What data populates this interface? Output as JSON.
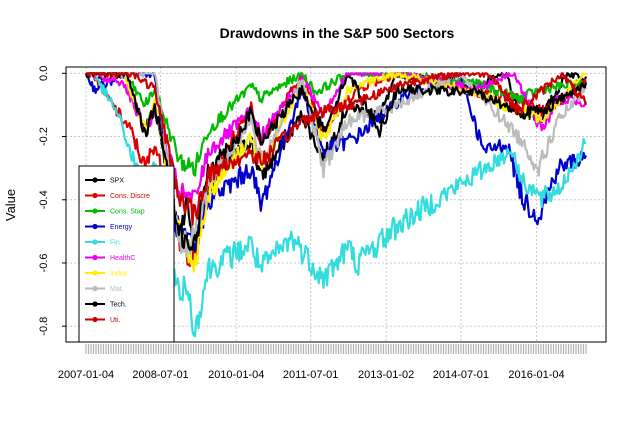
{
  "chart_data": {
    "type": "line",
    "title": "Drawdowns in the S&P 500 Sectors",
    "xlabel": "",
    "ylabel": "Value",
    "ylim": [
      -0.85,
      0.02
    ],
    "xlim": [
      "2007-01-04",
      "2016-12-30"
    ],
    "grid": true,
    "legend_placement": "bottom-left",
    "x_ticks": [
      "2007-01-04",
      "2008-07-01",
      "2010-01-04",
      "2011-07-01",
      "2013-01-02",
      "2014-07-01",
      "2016-01-04"
    ],
    "y_ticks": [
      {
        "value": 0.0,
        "label": "0.0"
      },
      {
        "value": -0.2,
        "label": "-0.2"
      },
      {
        "value": -0.4,
        "label": "-0.4"
      },
      {
        "value": -0.6,
        "label": "-0.6"
      },
      {
        "value": -0.8,
        "label": "-0.8"
      }
    ],
    "series": [
      {
        "name": "SPX",
        "color": "#000000",
        "points": [
          [
            "2007-01-04",
            0
          ],
          [
            "2007-06-01",
            -0.01
          ],
          [
            "2007-10-09",
            0
          ],
          [
            "2008-03-10",
            -0.18
          ],
          [
            "2008-05-19",
            -0.1
          ],
          [
            "2008-10-10",
            -0.42
          ],
          [
            "2008-11-20",
            -0.5
          ],
          [
            "2009-01-06",
            -0.4
          ],
          [
            "2009-03-09",
            -0.56
          ],
          [
            "2009-06-12",
            -0.35
          ],
          [
            "2010-01-19",
            -0.25
          ],
          [
            "2010-04-23",
            -0.21
          ],
          [
            "2010-07-02",
            -0.33
          ],
          [
            "2011-04-29",
            -0.13
          ],
          [
            "2011-10-03",
            -0.27
          ],
          [
            "2012-04-02",
            -0.1
          ],
          [
            "2012-11-15",
            -0.14
          ],
          [
            "2013-03-28",
            0
          ],
          [
            "2014-10-15",
            -0.05
          ],
          [
            "2015-05-21",
            0
          ],
          [
            "2015-08-25",
            -0.12
          ],
          [
            "2016-02-11",
            -0.14
          ],
          [
            "2016-08-15",
            0
          ],
          [
            "2016-12-30",
            -0.01
          ]
        ]
      },
      {
        "name": "Cons. Discre",
        "color": "#dd0000",
        "points": [
          [
            "2007-01-04",
            0
          ],
          [
            "2007-02-20",
            0
          ],
          [
            "2007-08-16",
            -0.12
          ],
          [
            "2007-11-26",
            -0.18
          ],
          [
            "2008-03-10",
            -0.3
          ],
          [
            "2008-05-19",
            -0.22
          ],
          [
            "2008-11-20",
            -0.55
          ],
          [
            "2009-03-09",
            -0.58
          ],
          [
            "2009-06-12",
            -0.35
          ],
          [
            "2010-04-23",
            -0.1
          ],
          [
            "2010-07-02",
            -0.22
          ],
          [
            "2011-04-29",
            0
          ],
          [
            "2011-10-03",
            -0.18
          ],
          [
            "2012-06-01",
            -0.05
          ],
          [
            "2013-03-28",
            0
          ],
          [
            "2014-10-15",
            -0.06
          ],
          [
            "2015-08-25",
            -0.08
          ],
          [
            "2016-02-11",
            -0.12
          ],
          [
            "2016-12-30",
            -0.03
          ]
        ]
      },
      {
        "name": "Cons. Stap",
        "color": "#00bb00",
        "points": [
          [
            "2007-01-04",
            0
          ],
          [
            "2007-10-09",
            0
          ],
          [
            "2008-03-10",
            -0.1
          ],
          [
            "2008-05-19",
            -0.05
          ],
          [
            "2008-11-20",
            -0.28
          ],
          [
            "2009-03-09",
            -0.3
          ],
          [
            "2009-06-12",
            -0.18
          ],
          [
            "2010-04-23",
            -0.04
          ],
          [
            "2010-07-02",
            -0.08
          ],
          [
            "2011-04-29",
            0
          ],
          [
            "2011-08-08",
            -0.06
          ],
          [
            "2012-04-02",
            0
          ],
          [
            "2013-03-28",
            0
          ],
          [
            "2014-10-15",
            -0.03
          ],
          [
            "2015-08-25",
            -0.08
          ],
          [
            "2016-02-11",
            -0.05
          ],
          [
            "2016-12-30",
            -0.03
          ]
        ]
      },
      {
        "name": "Energy",
        "color": "#0000cc",
        "points": [
          [
            "2007-01-04",
            0
          ],
          [
            "2007-03-06",
            -0.05
          ],
          [
            "2007-10-31",
            0
          ],
          [
            "2008-05-20",
            0
          ],
          [
            "2008-10-10",
            -0.45
          ],
          [
            "2008-11-20",
            -0.52
          ],
          [
            "2009-03-09",
            -0.55
          ],
          [
            "2009-06-12",
            -0.4
          ],
          [
            "2009-12-01",
            -0.35
          ],
          [
            "2010-04-23",
            -0.3
          ],
          [
            "2010-07-02",
            -0.42
          ],
          [
            "2011-04-29",
            -0.05
          ],
          [
            "2011-10-03",
            -0.25
          ],
          [
            "2012-06-01",
            -0.2
          ],
          [
            "2013-05-20",
            -0.07
          ],
          [
            "2014-06-23",
            0
          ],
          [
            "2014-12-15",
            -0.25
          ],
          [
            "2015-06-01",
            -0.22
          ],
          [
            "2015-09-29",
            -0.4
          ],
          [
            "2016-01-20",
            -0.45
          ],
          [
            "2016-06-08",
            -0.3
          ],
          [
            "2016-12-30",
            -0.26
          ]
        ]
      },
      {
        "name": "Fin.",
        "color": "#33dddd",
        "points": [
          [
            "2007-01-04",
            0
          ],
          [
            "2007-02-20",
            0
          ],
          [
            "2007-08-16",
            -0.12
          ],
          [
            "2007-11-26",
            -0.25
          ],
          [
            "2008-03-10",
            -0.38
          ],
          [
            "2008-05-19",
            -0.3
          ],
          [
            "2008-10-10",
            -0.62
          ],
          [
            "2008-11-20",
            -0.72
          ],
          [
            "2009-01-06",
            -0.66
          ],
          [
            "2009-03-09",
            -0.82
          ],
          [
            "2009-06-12",
            -0.62
          ],
          [
            "2010-04-23",
            -0.54
          ],
          [
            "2010-07-02",
            -0.62
          ],
          [
            "2011-02-18",
            -0.52
          ],
          [
            "2011-10-03",
            -0.65
          ],
          [
            "2012-04-02",
            -0.55
          ],
          [
            "2012-06-04",
            -0.6
          ],
          [
            "2013-03-28",
            -0.48
          ],
          [
            "2014-10-15",
            -0.32
          ],
          [
            "2015-07-20",
            -0.24
          ],
          [
            "2015-08-25",
            -0.32
          ],
          [
            "2016-02-11",
            -0.4
          ],
          [
            "2016-06-27",
            -0.36
          ],
          [
            "2016-12-30",
            -0.22
          ]
        ]
      },
      {
        "name": "HealthC",
        "color": "#ee00ee",
        "points": [
          [
            "2007-01-04",
            0
          ],
          [
            "2007-10-09",
            -0.03
          ],
          [
            "2008-03-10",
            -0.18
          ],
          [
            "2008-05-19",
            -0.12
          ],
          [
            "2008-11-20",
            -0.38
          ],
          [
            "2009-03-09",
            -0.4
          ],
          [
            "2009-06-12",
            -0.25
          ],
          [
            "2010-04-23",
            -0.12
          ],
          [
            "2010-07-02",
            -0.2
          ],
          [
            "2011-04-29",
            -0.02
          ],
          [
            "2011-10-03",
            -0.12
          ],
          [
            "2012-04-02",
            0
          ],
          [
            "2013-03-28",
            0
          ],
          [
            "2014-10-15",
            -0.05
          ],
          [
            "2015-07-20",
            0
          ],
          [
            "2016-02-11",
            -0.18
          ],
          [
            "2016-06-08",
            -0.08
          ],
          [
            "2016-12-30",
            -0.09
          ]
        ]
      },
      {
        "name": "Indus",
        "color": "#ffee00",
        "points": [
          [
            "2007-01-04",
            0
          ],
          [
            "2007-10-09",
            0
          ],
          [
            "2008-03-10",
            -0.18
          ],
          [
            "2008-05-19",
            -0.1
          ],
          [
            "2008-11-20",
            -0.5
          ],
          [
            "2009-03-09",
            -0.6
          ],
          [
            "2009-06-12",
            -0.38
          ],
          [
            "2010-04-23",
            -0.2
          ],
          [
            "2010-07-02",
            -0.3
          ],
          [
            "2011-04-29",
            -0.03
          ],
          [
            "2011-10-03",
            -0.22
          ],
          [
            "2012-04-02",
            -0.05
          ],
          [
            "2013-03-28",
            0
          ],
          [
            "2014-10-15",
            -0.06
          ],
          [
            "2015-08-25",
            -0.12
          ],
          [
            "2016-02-11",
            -0.14
          ],
          [
            "2016-12-30",
            0
          ]
        ]
      },
      {
        "name": "Mat.",
        "color": "#bbbbbb",
        "points": [
          [
            "2007-01-04",
            0
          ],
          [
            "2007-10-31",
            0
          ],
          [
            "2008-05-20",
            0
          ],
          [
            "2008-10-10",
            -0.42
          ],
          [
            "2008-11-20",
            -0.55
          ],
          [
            "2009-03-09",
            -0.52
          ],
          [
            "2009-06-12",
            -0.35
          ],
          [
            "2010-04-23",
            -0.15
          ],
          [
            "2010-07-02",
            -0.28
          ],
          [
            "2011-04-29",
            -0.02
          ],
          [
            "2011-10-03",
            -0.3
          ],
          [
            "2012-04-02",
            -0.15
          ],
          [
            "2013-03-28",
            -0.1
          ],
          [
            "2014-06-23",
            0
          ],
          [
            "2015-08-25",
            -0.2
          ],
          [
            "2016-01-20",
            -0.3
          ],
          [
            "2016-06-08",
            -0.15
          ],
          [
            "2016-12-30",
            -0.05
          ]
        ]
      },
      {
        "name": "Tech.",
        "color": "#000000",
        "points": [
          [
            "2007-01-04",
            0
          ],
          [
            "2007-11-01",
            0
          ],
          [
            "2008-03-10",
            -0.2
          ],
          [
            "2008-05-19",
            -0.1
          ],
          [
            "2008-11-20",
            -0.5
          ],
          [
            "2009-03-09",
            -0.55
          ],
          [
            "2009-06-12",
            -0.3
          ],
          [
            "2010-01-19",
            -0.2
          ],
          [
            "2010-04-23",
            -0.12
          ],
          [
            "2010-07-02",
            -0.22
          ],
          [
            "2011-04-29",
            -0.05
          ],
          [
            "2011-10-03",
            -0.18
          ],
          [
            "2012-04-02",
            0
          ],
          [
            "2012-11-15",
            -0.18
          ],
          [
            "2013-03-28",
            -0.05
          ],
          [
            "2014-10-15",
            -0.06
          ],
          [
            "2015-08-25",
            -0.12
          ],
          [
            "2016-02-11",
            -0.12
          ],
          [
            "2016-12-30",
            -0.03
          ]
        ]
      },
      {
        "name": "Uti.",
        "color": "#cc0000",
        "points": [
          [
            "2007-01-04",
            0
          ],
          [
            "2007-12-10",
            0
          ],
          [
            "2008-05-19",
            -0.05
          ],
          [
            "2008-11-20",
            -0.4
          ],
          [
            "2009-03-09",
            -0.45
          ],
          [
            "2009-06-12",
            -0.32
          ],
          [
            "2010-04-23",
            -0.25
          ],
          [
            "2010-07-02",
            -0.28
          ],
          [
            "2011-04-29",
            -0.15
          ],
          [
            "2011-10-03",
            -0.12
          ],
          [
            "2012-04-02",
            -0.1
          ],
          [
            "2013-05-20",
            -0.03
          ],
          [
            "2014-06-23",
            0
          ],
          [
            "2015-01-28",
            0
          ],
          [
            "2015-08-25",
            -0.12
          ],
          [
            "2016-07-05",
            0
          ],
          [
            "2016-12-30",
            -0.1
          ]
        ]
      }
    ]
  }
}
